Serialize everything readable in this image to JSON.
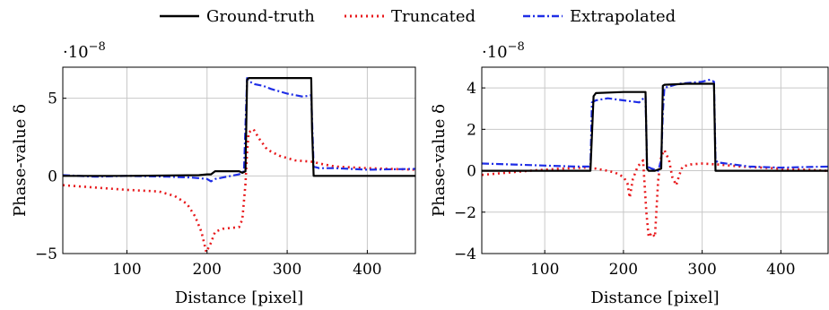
{
  "legend": {
    "placement": "top-center",
    "entries": [
      {
        "label": "Ground-truth",
        "color": "#000000",
        "style": "solid"
      },
      {
        "label": "Truncated",
        "color": "#e8191c",
        "style": "dotted"
      },
      {
        "label": "Extrapolated",
        "color": "#1f2ee6",
        "style": "dash-dot"
      }
    ]
  },
  "chart_data": [
    {
      "type": "line",
      "xlabel": "Distance [pixel]",
      "ylabel": "Phase-value δ",
      "exponent": "·10",
      "exponent_power": "−8",
      "xlim": [
        20,
        460
      ],
      "ylim": [
        -5,
        7
      ],
      "xticks": [
        100,
        200,
        300,
        400
      ],
      "yticks": [
        -5,
        0,
        5
      ],
      "ytick_labels": [
        "−5",
        "0",
        "5"
      ],
      "grid": true,
      "series": [
        {
          "name": "Ground-truth",
          "color": "#000000",
          "x": [
            20,
            100,
            190,
            200,
            205,
            210,
            240,
            244,
            248,
            250,
            252,
            330,
            331,
            333,
            335,
            400,
            460
          ],
          "y": [
            0,
            0,
            0.05,
            0.1,
            0.1,
            0.3,
            0.3,
            0.2,
            0.3,
            6.2,
            6.3,
            6.3,
            3,
            0,
            0,
            0,
            0
          ]
        },
        {
          "name": "Truncated",
          "color": "#e8191c",
          "x": [
            20,
            60,
            100,
            140,
            160,
            175,
            185,
            193,
            199,
            202,
            205,
            210,
            220,
            240,
            244,
            248,
            250,
            252,
            258,
            265,
            275,
            290,
            310,
            333,
            340,
            360,
            400,
            460
          ],
          "y": [
            -0.6,
            -0.75,
            -0.9,
            -1.0,
            -1.3,
            -1.8,
            -2.6,
            -3.6,
            -4.9,
            -4.6,
            -4.3,
            -3.6,
            -3.4,
            -3.3,
            -2.8,
            -0.5,
            1.5,
            2.8,
            3.0,
            2.4,
            1.7,
            1.3,
            1.0,
            0.9,
            0.8,
            0.6,
            0.5,
            0.4
          ]
        },
        {
          "name": "Extrapolated",
          "color": "#1f2ee6",
          "x": [
            20,
            60,
            100,
            150,
            180,
            190,
            200,
            205,
            210,
            220,
            230,
            240,
            246,
            250,
            252,
            260,
            270,
            280,
            300,
            320,
            330,
            333,
            340,
            360,
            400,
            460
          ],
          "y": [
            0.05,
            -0.05,
            0,
            -0.05,
            -0.1,
            -0.15,
            -0.2,
            -0.35,
            -0.2,
            -0.1,
            0,
            0.1,
            0.3,
            6.3,
            6.1,
            5.9,
            5.8,
            5.6,
            5.3,
            5.1,
            5.2,
            0.6,
            0.5,
            0.5,
            0.4,
            0.45
          ]
        }
      ]
    },
    {
      "type": "line",
      "xlabel": "Distance [pixel]",
      "ylabel": "Phase-value δ",
      "exponent": "·10",
      "exponent_power": "−8",
      "xlim": [
        20,
        460
      ],
      "ylim": [
        -4,
        5
      ],
      "xticks": [
        100,
        200,
        300,
        400
      ],
      "yticks": [
        -4,
        -2,
        0,
        2,
        4
      ],
      "ytick_labels": [
        "−4",
        "−2",
        "0",
        "2",
        "4"
      ],
      "grid": true,
      "series": [
        {
          "name": "Ground-truth",
          "color": "#000000",
          "x": [
            20,
            100,
            158,
            162,
            165,
            200,
            228,
            230,
            232,
            240,
            248,
            250,
            252,
            280,
            315,
            317,
            320,
            400,
            460
          ],
          "y": [
            0,
            0,
            0,
            3.6,
            3.75,
            3.8,
            3.8,
            0.1,
            0,
            0,
            0.1,
            4.1,
            4.15,
            4.2,
            4.2,
            0,
            0,
            0,
            0
          ]
        },
        {
          "name": "Truncated",
          "color": "#e8191c",
          "x": [
            20,
            80,
            120,
            150,
            165,
            180,
            190,
            200,
            205,
            208,
            212,
            218,
            225,
            229,
            232,
            236,
            240,
            244,
            248,
            252,
            258,
            262,
            267,
            271,
            275,
            285,
            300,
            320,
            350,
            400,
            460
          ],
          "y": [
            -0.2,
            0,
            0.1,
            0.15,
            0.1,
            0,
            -0.1,
            -0.3,
            -0.6,
            -1.3,
            -0.4,
            0.2,
            0.5,
            -2.0,
            -3.2,
            -3.0,
            -3.2,
            -0.5,
            0.7,
            1.0,
            0.5,
            -0.3,
            -0.7,
            -0.2,
            0.2,
            0.3,
            0.35,
            0.3,
            0.2,
            0.1,
            0
          ]
        },
        {
          "name": "Extrapolated",
          "color": "#1f2ee6",
          "x": [
            20,
            60,
            100,
            140,
            158,
            160,
            165,
            180,
            200,
            220,
            228,
            230,
            236,
            244,
            248,
            250,
            252,
            270,
            300,
            310,
            315,
            317,
            320,
            360,
            400,
            460
          ],
          "y": [
            0.35,
            0.3,
            0.25,
            0.2,
            0.2,
            3.3,
            3.4,
            3.5,
            3.4,
            3.3,
            3.6,
            0.2,
            0.1,
            0,
            0.5,
            2.8,
            4.0,
            4.2,
            4.3,
            4.4,
            4.3,
            0.5,
            0.4,
            0.2,
            0.15,
            0.2
          ]
        }
      ]
    }
  ]
}
